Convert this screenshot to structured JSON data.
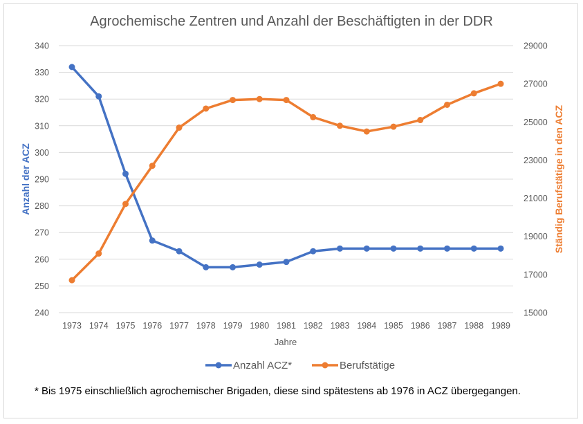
{
  "chart_data": {
    "type": "line",
    "title": "Agrochemische Zentren und Anzahl der Beschäftigten in der DDR",
    "xlabel": "Jahre",
    "ylabel": "Anzahl der ACZ",
    "y2label": "Ständig Berufstätige in den ACZ",
    "categories": [
      "1973",
      "1974",
      "1975",
      "1976",
      "1977",
      "1978",
      "1979",
      "1980",
      "1981",
      "1982",
      "1983",
      "1984",
      "1985",
      "1986",
      "1987",
      "1988",
      "1989"
    ],
    "ylim": [
      240,
      340
    ],
    "y_ticks": [
      240,
      250,
      260,
      270,
      280,
      290,
      300,
      310,
      320,
      330,
      340
    ],
    "y2lim": [
      15000,
      29000
    ],
    "y2_ticks": [
      15000,
      17000,
      19000,
      21000,
      23000,
      25000,
      27000,
      29000
    ],
    "grid": true,
    "legend_position": "bottom",
    "series": [
      {
        "name": "Anzahl ACZ*",
        "axis": "left",
        "color": "#4472C4",
        "values": [
          332,
          321,
          292,
          267,
          263,
          257,
          257,
          258,
          259,
          263,
          264,
          264,
          264,
          264,
          264,
          264,
          264
        ]
      },
      {
        "name": "Berufstätige",
        "axis": "right",
        "color": "#ED7D31",
        "values": [
          16700,
          18100,
          20700,
          22700,
          24700,
          25700,
          26150,
          26200,
          26150,
          25250,
          24800,
          24500,
          24750,
          25100,
          25900,
          26500,
          27000
        ]
      }
    ],
    "footnote": "* Bis 1975 einschließlich agrochemischer Brigaden, diese sind spätestens ab 1976 in ACZ übergegangen."
  }
}
